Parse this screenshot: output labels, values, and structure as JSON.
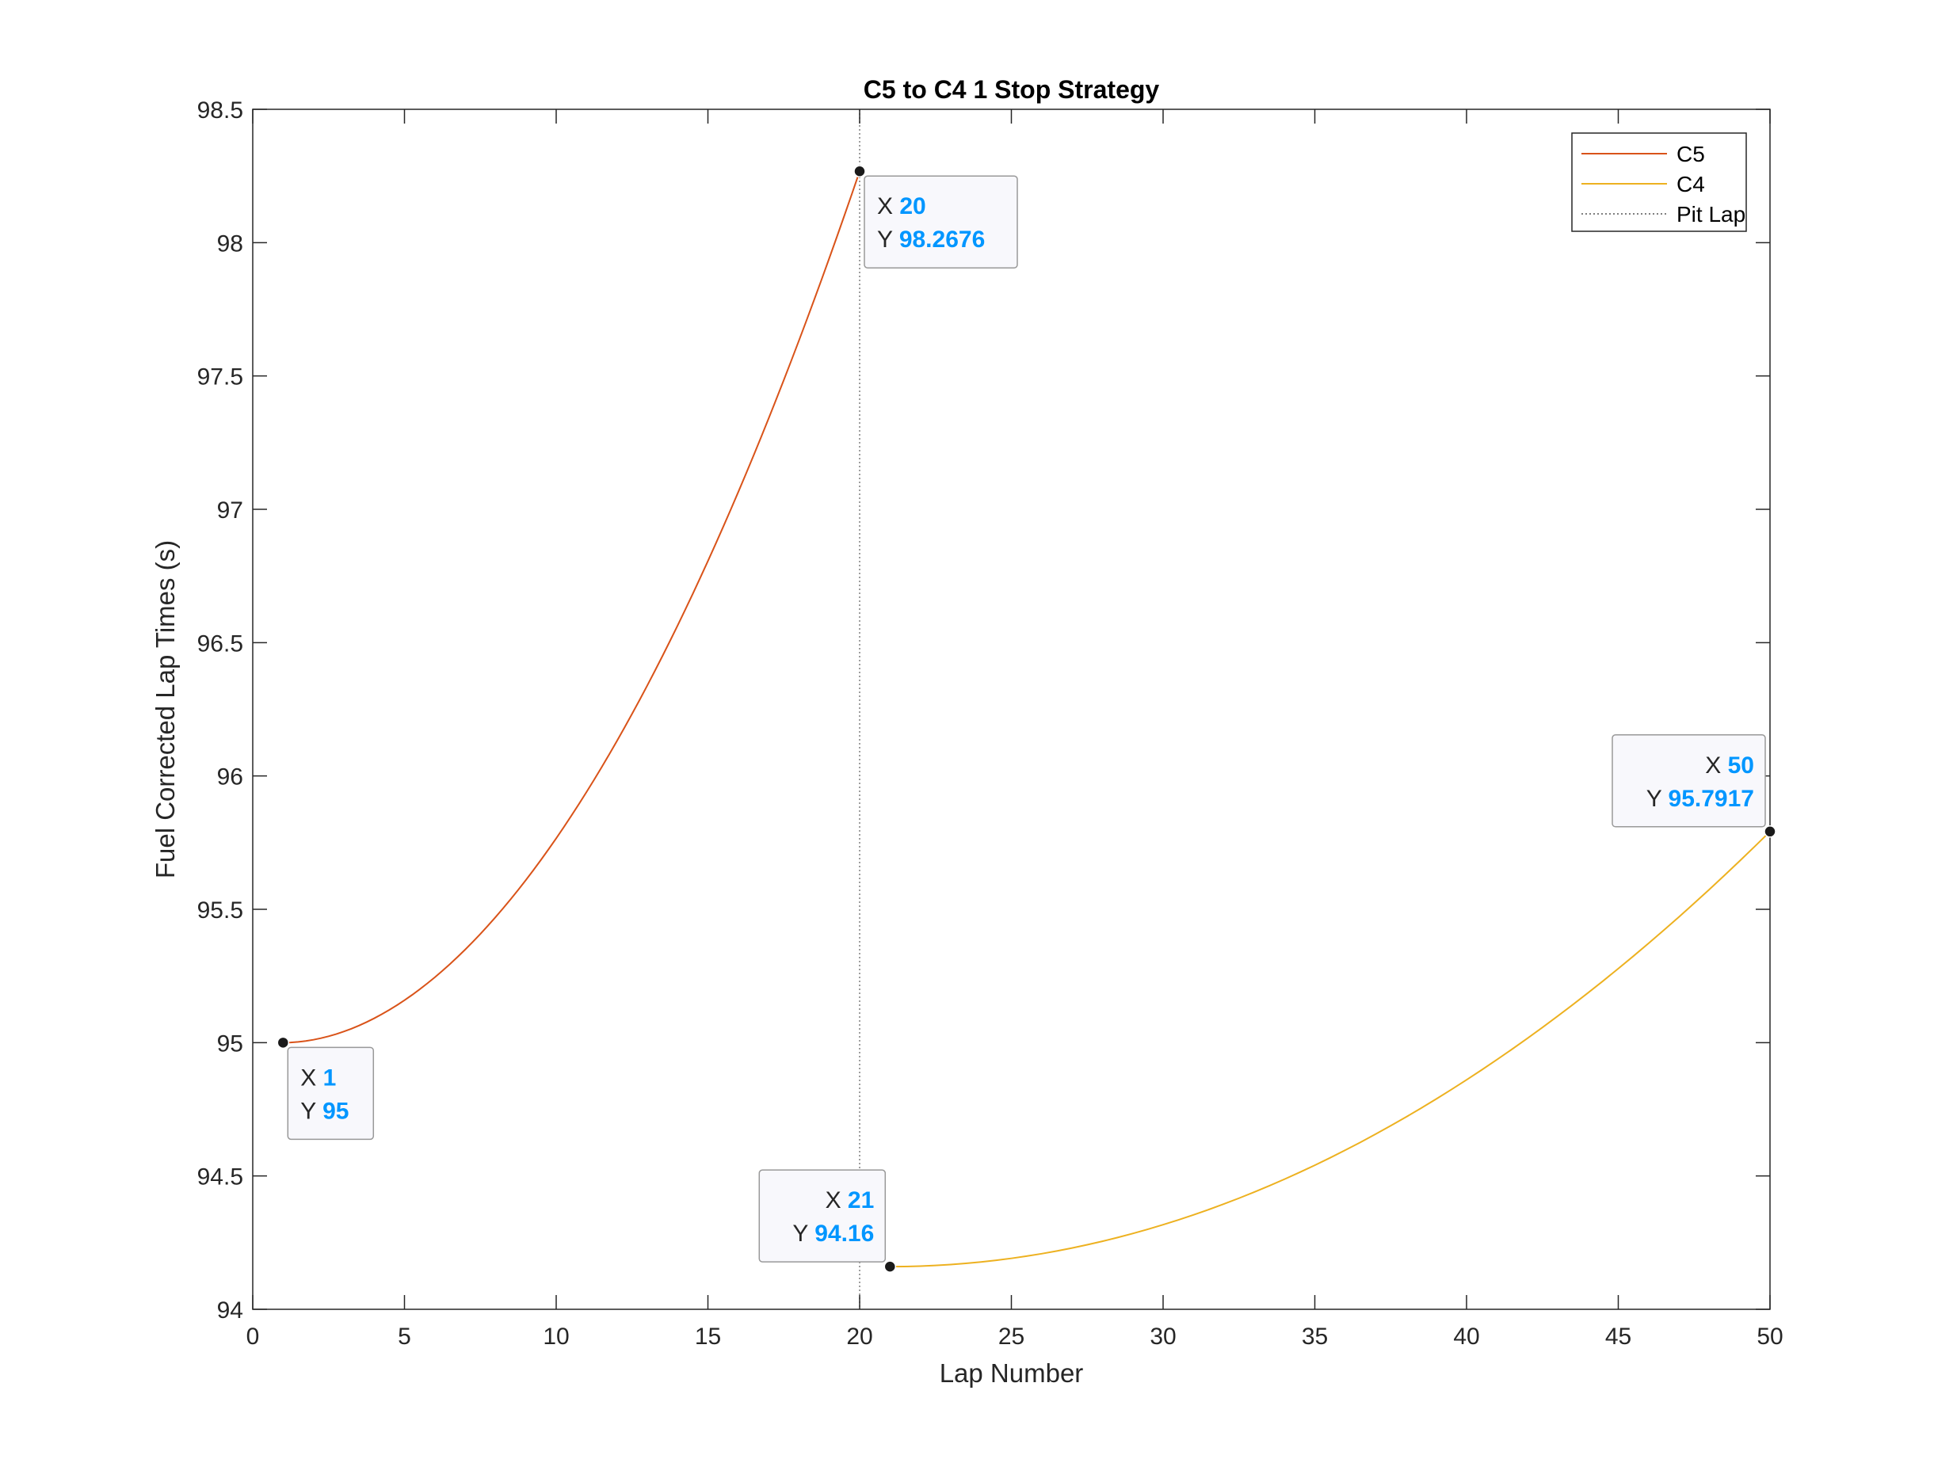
{
  "chart_data": {
    "type": "line",
    "title": "C5 to C4 1 Stop Strategy",
    "xlabel": "Lap Number",
    "ylabel": "Fuel Corrected Lap Times (s)",
    "xlim": [
      0,
      50
    ],
    "ylim": [
      94,
      98.5
    ],
    "xticks": [
      0,
      5,
      10,
      15,
      20,
      25,
      30,
      35,
      40,
      45,
      50
    ],
    "yticks": [
      94,
      94.5,
      95,
      95.5,
      96,
      96.5,
      97,
      97.5,
      98,
      98.5
    ],
    "grid": false,
    "legend_position": "top-right",
    "series": [
      {
        "name": "C5",
        "color": "#D95319",
        "x": [
          1,
          2,
          3,
          4,
          5,
          6,
          7,
          8,
          9,
          10,
          11,
          12,
          13,
          14,
          15,
          16,
          17,
          18,
          19,
          20
        ],
        "y": [
          95.0,
          95.018,
          95.054,
          95.109,
          95.181,
          95.272,
          95.381,
          95.508,
          95.653,
          95.816,
          95.997,
          96.197,
          96.415,
          96.65,
          96.904,
          97.176,
          97.467,
          97.775,
          98.102,
          98.2676
        ]
      },
      {
        "name": "C4",
        "color": "#EDB120",
        "x": [
          21,
          23,
          25,
          27,
          29,
          31,
          33,
          35,
          37,
          39,
          41,
          43,
          45,
          47,
          49,
          50
        ],
        "y": [
          94.16,
          94.174,
          94.205,
          94.257,
          94.328,
          94.419,
          94.53,
          94.66,
          94.811,
          94.981,
          95.171,
          95.381,
          95.61,
          95.86,
          96.129,
          95.7917
        ]
      }
    ],
    "vertical_lines": [
      {
        "name": "Pit Lap",
        "x": 20,
        "color": "#7f7f7f",
        "style": "dotted"
      }
    ],
    "datatips": [
      {
        "x": "1",
        "y": "95",
        "point": [
          1,
          95
        ],
        "side": "below-right"
      },
      {
        "x": "20",
        "y": "98.2676",
        "point": [
          20,
          98.2676
        ],
        "side": "below-right"
      },
      {
        "x": "21",
        "y": "94.16",
        "point": [
          21,
          94.16
        ],
        "side": "above-left"
      },
      {
        "x": "50",
        "y": "95.7917",
        "point": [
          50,
          95.7917
        ],
        "side": "above-left"
      }
    ],
    "datatip_labels": {
      "x": "X",
      "y": "Y"
    },
    "datatip_value_color": "#0096FF"
  }
}
